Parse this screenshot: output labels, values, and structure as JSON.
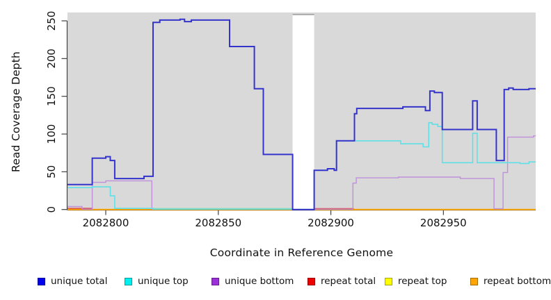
{
  "chart_data": {
    "type": "line",
    "subtype": "step-coverage-plot",
    "title": "",
    "xlabel": "Coordinate in Reference Genome",
    "ylabel": "Read Coverage Depth",
    "xlim": [
      2082783,
      2082991
    ],
    "ylim": [
      0,
      250
    ],
    "x_ticks": [
      "2082800",
      "2082850",
      "2082900",
      "2082950"
    ],
    "x_tick_values": [
      2082800,
      2082850,
      2082900,
      2082950
    ],
    "y_ticks": [
      "0",
      "50",
      "100",
      "150",
      "200",
      "250"
    ],
    "y_tick_values": [
      0,
      50,
      100,
      150,
      200,
      250
    ],
    "grid": false,
    "plot_background": "#d9d9d9",
    "missing_region": {
      "x0": 2082883,
      "x1": 2082892.6,
      "fill": "#ffffff",
      "top_edge_color": "#9a9a9a"
    },
    "axis_color": "#404040",
    "legend_position": "bottom",
    "legend": [
      {
        "label": "unique total",
        "color": "#0000ee"
      },
      {
        "label": "unique top",
        "color": "#00eeee"
      },
      {
        "label": "unique bottom",
        "color": "#9b30d8"
      },
      {
        "label": "repeat total",
        "color": "#ee0000"
      },
      {
        "label": "repeat top",
        "color": "#ffff00"
      },
      {
        "label": "repeat bottom",
        "color": "#ffa500"
      }
    ],
    "series": [
      {
        "name": "repeat total",
        "color": "#dc3a3a",
        "width": 1.4,
        "segments": [
          [
            [
              2082783,
              1.5
            ],
            [
              2082794,
              0
            ],
            [
              2082883,
              0
            ]
          ],
          [
            [
              2082892.6,
              1.2
            ],
            [
              2082910,
              0
            ],
            [
              2082991,
              0
            ]
          ]
        ]
      },
      {
        "name": "repeat top",
        "color": "#8cd98c",
        "width": 1.4,
        "note_visible_as": "green blend line just above zero",
        "segments": [
          [
            [
              2082821,
              1.2
            ],
            [
              2082883,
              1.2
            ]
          ]
        ]
      },
      {
        "name": "repeat bottom",
        "color": "#ffa500",
        "width": 2,
        "segments": [
          [
            [
              2082783,
              0
            ],
            [
              2082883,
              0
            ]
          ],
          [
            [
              2082892.6,
              0
            ],
            [
              2082991,
              0
            ]
          ]
        ]
      },
      {
        "name": "unique bottom",
        "color": "#c08fdc",
        "width": 1.4,
        "segments": [
          [
            [
              2082783,
              4
            ],
            [
              2082789.5,
              0.5
            ],
            [
              2082794,
              36
            ],
            [
              2082800,
              38
            ],
            [
              2082820.5,
              0.4
            ],
            [
              2082883,
              0
            ],
            [
              2082892.6,
              0.4
            ],
            [
              2082909.8,
              35
            ],
            [
              2082911.3,
              42
            ],
            [
              2082930,
              43
            ],
            [
              2082957.5,
              41
            ],
            [
              2082972.5,
              1
            ],
            [
              2082976.5,
              49
            ],
            [
              2082978.5,
              96
            ],
            [
              2082990,
              97.5
            ],
            [
              2082991,
              97.5
            ]
          ]
        ]
      },
      {
        "name": "unique top",
        "color": "#5fe0e6",
        "width": 1.6,
        "segments": [
          [
            [
              2082783,
              29
            ],
            [
              2082794,
              30
            ],
            [
              2082802,
              18
            ],
            [
              2082804,
              1.5
            ],
            [
              2082821,
              0.5
            ],
            [
              2082883,
              0
            ],
            [
              2082892.6,
              52
            ],
            [
              2082898.5,
              54
            ],
            [
              2082901.5,
              52
            ],
            [
              2082902.5,
              91
            ],
            [
              2082931,
              87
            ],
            [
              2082941,
              83
            ],
            [
              2082943.5,
              115
            ],
            [
              2082945,
              113
            ],
            [
              2082947.5,
              110
            ],
            [
              2082949.5,
              62
            ],
            [
              2082963,
              101
            ],
            [
              2082965,
              62
            ],
            [
              2082984,
              61
            ],
            [
              2082988,
              63
            ],
            [
              2082991,
              63
            ]
          ]
        ]
      },
      {
        "name": "unique total",
        "color": "#3434cc",
        "width": 2,
        "segments": [
          [
            [
              2082783,
              33
            ],
            [
              2082794,
              68
            ],
            [
              2082800,
              70
            ],
            [
              2082802,
              65
            ],
            [
              2082804,
              41
            ],
            [
              2082817,
              44
            ],
            [
              2082821,
              248
            ],
            [
              2082824,
              251
            ],
            [
              2082833,
              252
            ],
            [
              2082835,
              249
            ],
            [
              2082838,
              251
            ],
            [
              2082855,
              216
            ],
            [
              2082866,
              160
            ],
            [
              2082870,
              73
            ],
            [
              2082883,
              0
            ],
            [
              2082892.6,
              52
            ],
            [
              2082898.5,
              54
            ],
            [
              2082901.5,
              52
            ],
            [
              2082902.5,
              91
            ],
            [
              2082910.5,
              127
            ],
            [
              2082911.5,
              134
            ],
            [
              2082932,
              136
            ],
            [
              2082942,
              131
            ],
            [
              2082944,
              157
            ],
            [
              2082946,
              155
            ],
            [
              2082949.5,
              106
            ],
            [
              2082963,
              144
            ],
            [
              2082965,
              106
            ],
            [
              2082973.5,
              65
            ],
            [
              2082977,
              159
            ],
            [
              2082979,
              161
            ],
            [
              2082981,
              159
            ],
            [
              2082988,
              160
            ],
            [
              2082991,
              160
            ]
          ]
        ]
      }
    ]
  }
}
